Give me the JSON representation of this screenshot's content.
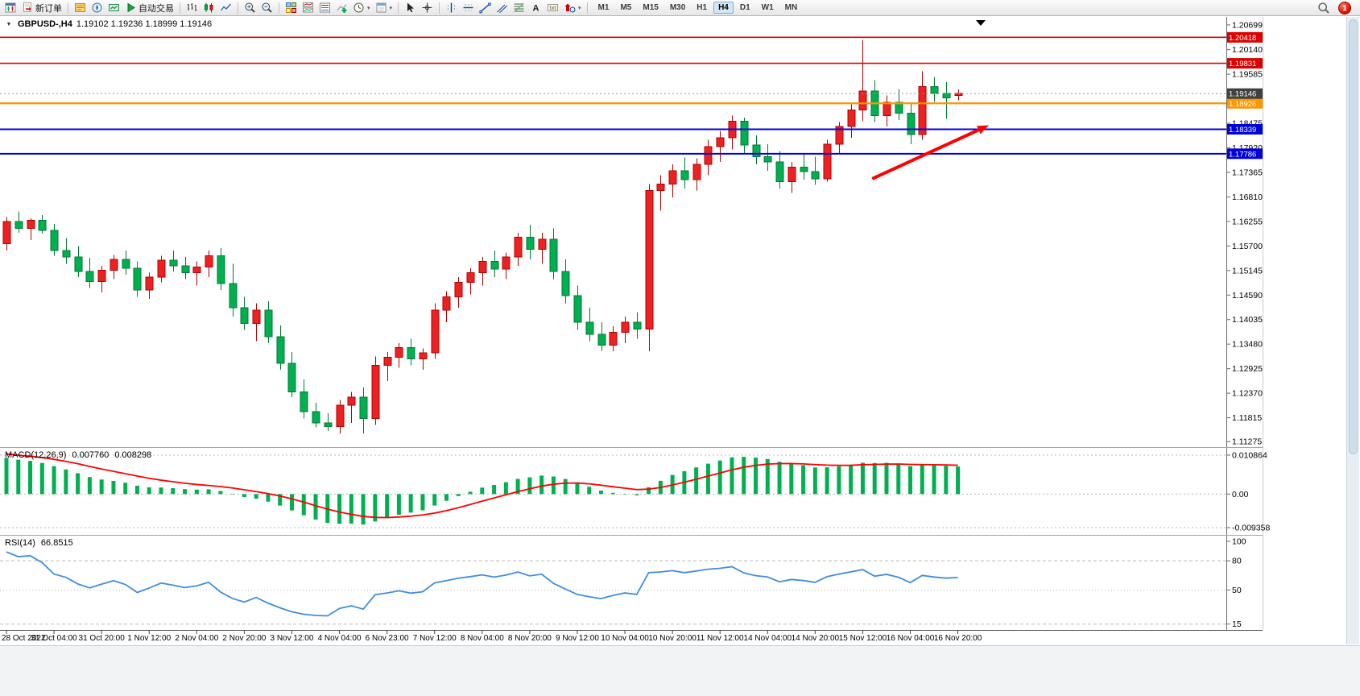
{
  "toolbar": {
    "dropdown_glyph": "▾",
    "items": [
      {
        "name": "chart-window-button",
        "icon": "chartwin"
      },
      {
        "name": "new-order-button",
        "icon": "neworder",
        "label": "新订单"
      },
      {
        "sep": true
      },
      {
        "name": "market-watch-button",
        "icon": "marketwatch"
      },
      {
        "name": "navigator-button",
        "icon": "navigator"
      },
      {
        "name": "terminal-button",
        "icon": "terminal"
      },
      {
        "name": "auto-trading-button",
        "icon": "autotrade",
        "label": "自动交易"
      },
      {
        "sep": true
      },
      {
        "name": "bar-chart-button",
        "icon": "bars"
      },
      {
        "name": "candlestick-chart-button",
        "icon": "candles"
      },
      {
        "name": "line-chart-button",
        "icon": "linechart"
      },
      {
        "sep": true
      },
      {
        "name": "zoom-in-button",
        "icon": "zoomin"
      },
      {
        "name": "zoom-out-button",
        "icon": "zoomout"
      },
      {
        "sep": true
      },
      {
        "name": "tile-windows-button",
        "icon": "tile"
      },
      {
        "name": "indicator-windows-button",
        "icon": "indwin"
      },
      {
        "name": "indicator-list-button",
        "icon": "indlist"
      },
      {
        "name": "add-indicator-button",
        "icon": "addind"
      },
      {
        "name": "periods-button",
        "icon": "clock",
        "dropdown": true
      },
      {
        "name": "templates-button",
        "icon": "template",
        "dropdown": true
      },
      {
        "sep": true
      },
      {
        "name": "cursor-button",
        "icon": "cursor"
      },
      {
        "name": "crosshair-button",
        "icon": "crosshair"
      },
      {
        "sep": true
      },
      {
        "name": "vertical-line-button",
        "icon": "vline"
      },
      {
        "name": "horizontal-line-button",
        "icon": "hline"
      },
      {
        "name": "trendline-button",
        "icon": "trend"
      },
      {
        "name": "equidistant-channel-button",
        "icon": "channel"
      },
      {
        "name": "fibonacci-button",
        "icon": "fibo"
      },
      {
        "name": "text-button",
        "icon": "textA"
      },
      {
        "name": "text-label-button",
        "icon": "label"
      },
      {
        "name": "arrows-button",
        "icon": "shapes",
        "dropdown": true
      },
      {
        "sep": true
      }
    ],
    "timeframes": [
      "M1",
      "M5",
      "M15",
      "M30",
      "H1",
      "H4",
      "D1",
      "W1",
      "MN"
    ],
    "active_timeframe": "H4",
    "notification_badge": "1"
  },
  "chart": {
    "header": {
      "menu_caret": "▼",
      "symbol_period": "GBPUSD-,H4",
      "ohlc": "1.19102 1.19236 1.18999 1.19146"
    }
  },
  "chart_data": {
    "type": "candlestick",
    "symbol": "GBPUSD-",
    "period": "H4",
    "colors": {
      "up": "#ec2222",
      "up_border": "#b40000",
      "down": "#00b050",
      "down_border": "#007a36",
      "background": "#ffffff"
    },
    "price_axis": {
      "min": 1.1117,
      "max": 1.2088,
      "labels": [
        "1.20699",
        "1.20140",
        "1.19585",
        "1.18475",
        "1.17920",
        "1.17365",
        "1.16810",
        "1.16255",
        "1.15700",
        "1.15145",
        "1.14590",
        "1.14035",
        "1.13480",
        "1.12925",
        "1.12370",
        "1.11815",
        "1.11275"
      ]
    },
    "time_axis": {
      "candles_per_label": 4,
      "labels": [
        "28 Oct 2022",
        "31 Oct 04:00",
        "31 Oct 20:00",
        "1 Nov 12:00",
        "2 Nov 04:00",
        "2 Nov 20:00",
        "3 Nov 12:00",
        "4 Nov 04:00",
        "6 Nov 23:00",
        "7 Nov 12:00",
        "8 Nov 04:00",
        "8 Nov 20:00",
        "9 Nov 12:00",
        "10 Nov 04:00",
        "10 Nov 20:00",
        "11 Nov 12:00",
        "14 Nov 04:00",
        "14 Nov 20:00",
        "15 Nov 12:00",
        "16 Nov 04:00",
        "16 Nov 20:00"
      ]
    },
    "current_price": {
      "value": 1.19146,
      "label": "1.19146",
      "box_color": "#404040"
    },
    "hlines": [
      {
        "price": 1.20418,
        "label": "1.20418",
        "color": "#dd0000",
        "width": 1.6
      },
      {
        "price": 1.19831,
        "label": "1.19831",
        "color": "#dd0000",
        "width": 1.6
      },
      {
        "price": 1.18926,
        "label": "1.18926",
        "color": "#ff9500",
        "width": 2.2
      },
      {
        "price": 1.18339,
        "label": "1.18339",
        "color": "#0000dd",
        "width": 2
      },
      {
        "price": 1.17786,
        "label": "1.17786",
        "color": "#0000dd",
        "width": 2
      }
    ],
    "annotations": [
      {
        "type": "arrow",
        "color": "#ff0000",
        "from": {
          "bar": 72.8,
          "price": 1.1722
        },
        "to": {
          "bar": 82.6,
          "price": 1.1843
        }
      }
    ],
    "candles": [
      [
        1.1575,
        1.1635,
        1.156,
        1.1625
      ],
      [
        1.1625,
        1.1648,
        1.16,
        1.161
      ],
      [
        1.161,
        1.1633,
        1.1583,
        1.1628
      ],
      [
        1.1628,
        1.164,
        1.1598,
        1.1605
      ],
      [
        1.1605,
        1.162,
        1.1548,
        1.156
      ],
      [
        1.156,
        1.1588,
        1.153,
        1.1545
      ],
      [
        1.1545,
        1.157,
        1.15,
        1.1512
      ],
      [
        1.1512,
        1.1543,
        1.1475,
        1.149
      ],
      [
        1.149,
        1.1525,
        1.1465,
        1.1515
      ],
      [
        1.1515,
        1.155,
        1.1495,
        1.154
      ],
      [
        1.154,
        1.156,
        1.1505,
        1.152
      ],
      [
        1.152,
        1.1535,
        1.1455,
        1.147
      ],
      [
        1.147,
        1.151,
        1.145,
        1.15
      ],
      [
        1.15,
        1.1548,
        1.1488,
        1.1538
      ],
      [
        1.1538,
        1.156,
        1.1512,
        1.1525
      ],
      [
        1.1525,
        1.1545,
        1.1495,
        1.151
      ],
      [
        1.151,
        1.1535,
        1.148,
        1.1522
      ],
      [
        1.1522,
        1.156,
        1.15,
        1.1548
      ],
      [
        1.1548,
        1.1565,
        1.147,
        1.1485
      ],
      [
        1.1485,
        1.153,
        1.141,
        1.143
      ],
      [
        1.143,
        1.1455,
        1.138,
        1.1395
      ],
      [
        1.1395,
        1.144,
        1.1355,
        1.1425
      ],
      [
        1.1425,
        1.1445,
        1.135,
        1.1365
      ],
      [
        1.1365,
        1.139,
        1.129,
        1.1305
      ],
      [
        1.1305,
        1.133,
        1.1228,
        1.124
      ],
      [
        1.124,
        1.1268,
        1.118,
        1.1195
      ],
      [
        1.1195,
        1.1215,
        1.116,
        1.117
      ],
      [
        1.117,
        1.1192,
        1.1152,
        1.1162
      ],
      [
        1.1162,
        1.1222,
        1.1145,
        1.121
      ],
      [
        1.121,
        1.124,
        1.117,
        1.1228
      ],
      [
        1.1228,
        1.125,
        1.1146,
        1.118
      ],
      [
        1.118,
        1.132,
        1.1165,
        1.13
      ],
      [
        1.13,
        1.133,
        1.1265,
        1.1318
      ],
      [
        1.1318,
        1.135,
        1.1295,
        1.134
      ],
      [
        1.134,
        1.136,
        1.13,
        1.1315
      ],
      [
        1.1315,
        1.1338,
        1.129,
        1.1328
      ],
      [
        1.1328,
        1.144,
        1.1315,
        1.1425
      ],
      [
        1.1425,
        1.1468,
        1.1398,
        1.1455
      ],
      [
        1.1455,
        1.15,
        1.143,
        1.1488
      ],
      [
        1.1488,
        1.152,
        1.146,
        1.151
      ],
      [
        1.151,
        1.1545,
        1.148,
        1.1535
      ],
      [
        1.1535,
        1.156,
        1.15,
        1.1518
      ],
      [
        1.1518,
        1.1555,
        1.1495,
        1.1545
      ],
      [
        1.1545,
        1.16,
        1.1525,
        1.159
      ],
      [
        1.159,
        1.1618,
        1.154,
        1.1562
      ],
      [
        1.1562,
        1.16,
        1.153,
        1.1585
      ],
      [
        1.1585,
        1.161,
        1.1495,
        1.1512
      ],
      [
        1.1512,
        1.154,
        1.144,
        1.1458
      ],
      [
        1.1458,
        1.148,
        1.138,
        1.1398
      ],
      [
        1.1398,
        1.143,
        1.1355,
        1.137
      ],
      [
        1.137,
        1.1398,
        1.1333,
        1.1346
      ],
      [
        1.1346,
        1.1388,
        1.1332,
        1.1375
      ],
      [
        1.1375,
        1.141,
        1.135,
        1.1398
      ],
      [
        1.1398,
        1.142,
        1.136,
        1.1382
      ],
      [
        1.1382,
        1.171,
        1.1332,
        1.1695
      ],
      [
        1.1695,
        1.173,
        1.165,
        1.171
      ],
      [
        1.171,
        1.1755,
        1.168,
        1.174
      ],
      [
        1.174,
        1.177,
        1.17,
        1.172
      ],
      [
        1.172,
        1.1768,
        1.1695,
        1.1755
      ],
      [
        1.1755,
        1.181,
        1.173,
        1.1795
      ],
      [
        1.1795,
        1.183,
        1.176,
        1.1815
      ],
      [
        1.1815,
        1.1865,
        1.1788,
        1.1852
      ],
      [
        1.1852,
        1.186,
        1.178,
        1.1798
      ],
      [
        1.1798,
        1.182,
        1.1755,
        1.1772
      ],
      [
        1.1772,
        1.18,
        1.174,
        1.176
      ],
      [
        1.176,
        1.1785,
        1.17,
        1.1715
      ],
      [
        1.1715,
        1.176,
        1.169,
        1.1748
      ],
      [
        1.1748,
        1.178,
        1.172,
        1.1738
      ],
      [
        1.1738,
        1.1772,
        1.1708,
        1.1722
      ],
      [
        1.1722,
        1.181,
        1.1715,
        1.18
      ],
      [
        1.18,
        1.185,
        1.178,
        1.184
      ],
      [
        1.184,
        1.189,
        1.1815,
        1.1878
      ],
      [
        1.1878,
        1.2035,
        1.1852,
        1.192
      ],
      [
        1.192,
        1.1945,
        1.185,
        1.1865
      ],
      [
        1.1865,
        1.191,
        1.184,
        1.1895
      ],
      [
        1.1895,
        1.1925,
        1.1855,
        1.187
      ],
      [
        1.187,
        1.1895,
        1.18,
        1.1822
      ],
      [
        1.1822,
        1.1965,
        1.181,
        1.193
      ],
      [
        1.193,
        1.1952,
        1.1896,
        1.1915
      ],
      [
        1.1915,
        1.194,
        1.1858,
        1.1905
      ],
      [
        1.19102,
        1.19236,
        1.18999,
        1.19146
      ]
    ],
    "prehistory_closes": [
      1.102,
      1.106,
      1.11,
      1.114,
      1.117,
      1.12,
      1.123,
      1.126,
      1.129,
      1.131,
      1.134,
      1.137,
      1.14,
      1.142,
      1.145,
      1.148,
      1.15,
      1.152,
      1.1545,
      1.156,
      1.158,
      1.1595,
      1.1605,
      1.1615,
      1.16,
      1.159,
      1.16,
      1.161,
      1.1605,
      1.1595
    ],
    "indicators": {
      "macd": {
        "label": "MACD(12,26,9)",
        "value_main": "0.007760",
        "value_signal": "0.008298",
        "fast": 12,
        "slow": 26,
        "signal_period": 9,
        "histogram_color": "#00b050",
        "signal_color": "#ff0000",
        "axis_labels": [
          {
            "value": 0.010864,
            "label": "0.010864"
          },
          {
            "value": 0,
            "label": "0.00"
          },
          {
            "value": -0.009358,
            "label": "-0.009358"
          }
        ]
      },
      "rsi": {
        "label": "RSI(14)",
        "value": "66.8515",
        "period": 14,
        "line_color": "#3e8ede",
        "axis_labels": [
          {
            "value": 100,
            "label": "100"
          },
          {
            "value": 80,
            "label": "80"
          },
          {
            "value": 50,
            "label": "50"
          },
          {
            "value": 15,
            "label": "15"
          }
        ]
      }
    }
  }
}
